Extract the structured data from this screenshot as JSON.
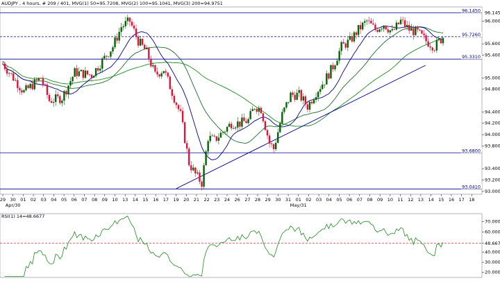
{
  "header": {
    "text": "AUDJPY , 4 hours, # 209 / 401, MVG(1) 50=95.7208, MVG(2) 100=95.1041, MVG(3) 200=94.9751"
  },
  "rsi_header": {
    "text": "RSI(1) 14=48.6677"
  },
  "colors": {
    "bull": "#006400",
    "bear": "#dc143c",
    "ma50": "#00008b",
    "ma100": "#1a6b2a",
    "ma200": "#1e8a1e",
    "line": "#00008b",
    "rsi": "#1e8a1e",
    "dash": "#cc0000"
  },
  "chart_data": [
    {
      "type": "candlestick",
      "title": "AUDJPY , 4 hours, # 209 / 401, MVG(1) 50=95.7208, MVG(2) 100=95.1041, MVG(3) 200=94.9751",
      "ylim": [
        92.95,
        96.25
      ],
      "y_ticks": [
        "96.0000",
        "95.6000",
        "95.4000",
        "95.0000",
        "94.8000",
        "94.4000",
        "94.2000",
        "94.0000",
        "93.8000",
        "93.4000",
        "93.2000",
        "93.0000"
      ],
      "x_ticks": [
        "29",
        "30",
        "01",
        "02",
        "03",
        "04",
        "05",
        "06",
        "07",
        "08",
        "09",
        "10",
        "13",
        "14",
        "15",
        "16",
        "17",
        "19",
        "20",
        "21",
        "22",
        "23",
        "24",
        "26",
        "27",
        "28",
        "29",
        "30",
        "31",
        "01",
        "02",
        "03",
        "04",
        "05",
        "06",
        "07",
        "08",
        "09",
        "10",
        "11",
        "12",
        "13",
        "14",
        "15",
        "16",
        "17",
        "18"
      ],
      "x_sublabels": [
        "Apr/30",
        "May/31"
      ],
      "horizontal_lines": [
        {
          "label": "96.1450",
          "value": 96.145
        },
        {
          "label": "95.7260",
          "value": 95.726
        },
        {
          "label": "95.3310",
          "value": 95.331
        },
        {
          "label": "93.6800",
          "value": 93.68
        },
        {
          "label": "93.0410",
          "value": 93.041
        }
      ],
      "moving_averages": [
        {
          "name": "MVG(1) 50",
          "last": 95.7208
        },
        {
          "name": "MVG(2) 100",
          "last": 95.1041
        },
        {
          "name": "MVG(3) 200",
          "last": 94.9751
        }
      ],
      "trendline": {
        "from": [
          82,
          93.05
        ],
        "to": [
          180,
          95.0
        ]
      }
    },
    {
      "type": "line",
      "title": "RSI(1) 14=48.6677",
      "ylim": [
        15,
        78
      ],
      "y_ticks": [
        "70.0000",
        "60.0000",
        "48.6677",
        "40.0000",
        "30.0000",
        "20.0000"
      ],
      "reference_line": 48.6677
    }
  ]
}
